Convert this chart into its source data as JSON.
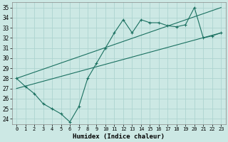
{
  "xlabel": "Humidex (Indice chaleur)",
  "background_color": "#cce8e4",
  "grid_color": "#aed4d0",
  "line_color": "#1a7060",
  "xlim": [
    -0.5,
    23.5
  ],
  "ylim": [
    23.5,
    35.5
  ],
  "yticks": [
    24,
    25,
    26,
    27,
    28,
    29,
    30,
    31,
    32,
    33,
    34,
    35
  ],
  "xticks": [
    0,
    1,
    2,
    3,
    4,
    5,
    6,
    7,
    8,
    9,
    10,
    11,
    12,
    13,
    14,
    15,
    16,
    17,
    18,
    19,
    20,
    21,
    22,
    23
  ],
  "line1_x": [
    0,
    1,
    2,
    3,
    4,
    5,
    6,
    7,
    8,
    9,
    10,
    11,
    12,
    13,
    14,
    15,
    16,
    17,
    18,
    19,
    20,
    21,
    22,
    23
  ],
  "line1_y": [
    28.0,
    27.2,
    26.5,
    25.5,
    25.0,
    24.5,
    23.7,
    25.2,
    28.0,
    29.5,
    31.0,
    32.5,
    33.8,
    32.5,
    33.8,
    33.5,
    33.5,
    33.2,
    33.1,
    33.3,
    35.0,
    32.0,
    32.2,
    32.5
  ],
  "line2_x": [
    0,
    23
  ],
  "line2_y": [
    28.0,
    35.0
  ],
  "line3_x": [
    0,
    23
  ],
  "line3_y": [
    27.0,
    32.5
  ]
}
